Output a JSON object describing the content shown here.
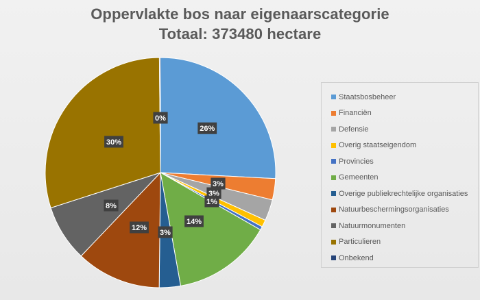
{
  "chart_data": {
    "type": "pie",
    "title": "Oppervlakte bos naar eigenaarscategorie",
    "subtitle": "Totaal: 373480 hectare",
    "legend_position": "right",
    "slices": [
      {
        "name": "Staatsbosbeheer",
        "value": 26,
        "label": "26%",
        "color": "#5b9bd5"
      },
      {
        "name": "Financiën",
        "value": 3,
        "label": "3%",
        "color": "#ed7d31"
      },
      {
        "name": "Defensie",
        "value": 3,
        "label": "3%",
        "color": "#a5a5a5"
      },
      {
        "name": "Overig staatseigendom",
        "value": 1,
        "label": "1%",
        "color": "#ffc000"
      },
      {
        "name": "Provincies",
        "value": 0.5,
        "label": "",
        "color": "#4472c4"
      },
      {
        "name": "Gemeenten",
        "value": 14,
        "label": "14%",
        "color": "#70ad47"
      },
      {
        "name": "Overige publiekrechtelijke organisaties",
        "value": 3,
        "label": "3%",
        "color": "#255e91"
      },
      {
        "name": "Natuurbeschermingsorganisaties",
        "value": 12,
        "label": "12%",
        "color": "#9e480e"
      },
      {
        "name": "Natuurmonumenten",
        "value": 8,
        "label": "8%",
        "color": "#636363"
      },
      {
        "name": "Particulieren",
        "value": 30,
        "label": "30%",
        "color": "#997300"
      },
      {
        "name": "Onbekend",
        "value": 0.15,
        "label": "0%",
        "color": "#264478"
      }
    ]
  }
}
